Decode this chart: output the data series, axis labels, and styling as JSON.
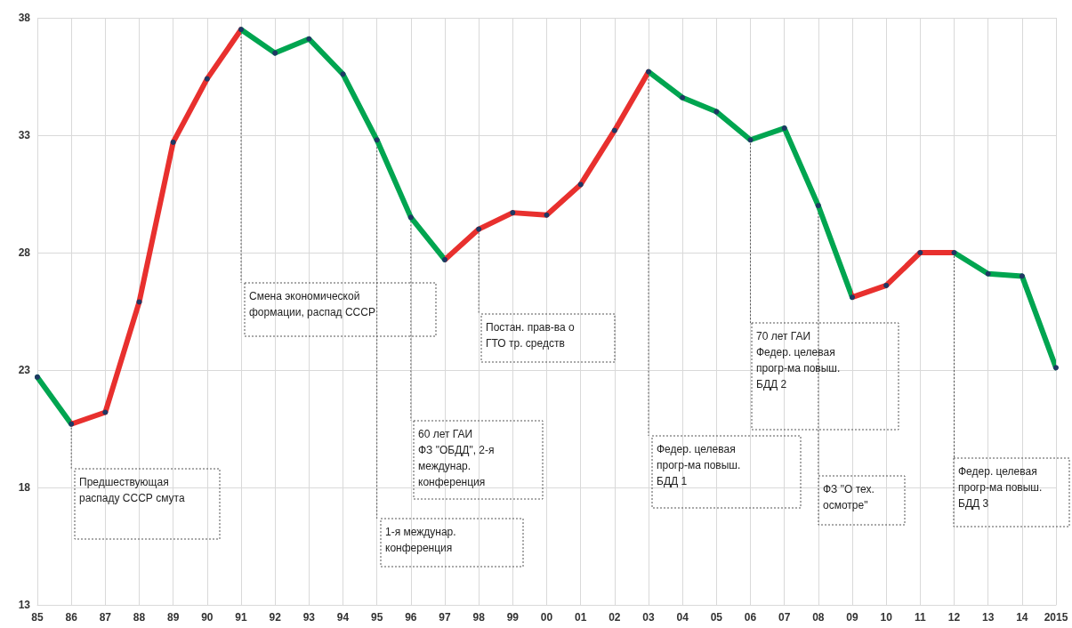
{
  "chart_data": {
    "type": "line",
    "categories": [
      "85",
      "86",
      "87",
      "88",
      "89",
      "90",
      "91",
      "92",
      "93",
      "94",
      "95",
      "96",
      "97",
      "98",
      "99",
      "00",
      "01",
      "02",
      "03",
      "04",
      "05",
      "06",
      "07",
      "08",
      "09",
      "10",
      "11",
      "12",
      "13",
      "14",
      "2015"
    ],
    "series": [
      {
        "color": "#1f3864",
        "values": [
          22.7,
          20.7,
          21.2,
          25.9,
          32.7,
          35.4,
          37.5,
          36.5,
          37.1,
          35.6,
          32.8,
          29.5,
          27.7,
          29.0,
          29.7,
          29.6,
          30.9,
          33.2,
          35.7,
          34.6,
          34.0,
          32.8,
          33.3,
          30.0,
          26.1,
          26.6,
          28.0,
          28.0,
          27.1,
          27.0,
          23.1
        ],
        "colors": [
          "#00a550",
          "#00a550",
          "#e8302e",
          "#e8302e",
          "#e8302e",
          "#e8302e",
          "#e8302e",
          "#00a550",
          "#00a550",
          "#00a550",
          "#00a550",
          "#00a550",
          "#00a550",
          "#e8302e",
          "#e8302e",
          "#e8302e",
          "#e8302e",
          "#e8302e",
          "#e8302e",
          "#00a550",
          "#00a550",
          "#00a550",
          "#00a550",
          "#00a550",
          "#00a550",
          "#e8302e",
          "#e8302e",
          "#e8302e",
          "#00a550",
          "#00a550",
          "#00a550"
        ]
      }
    ],
    "ylim": [
      13,
      38
    ],
    "yticks": [
      13,
      18,
      23,
      28,
      33,
      38
    ],
    "grid": true,
    "marker": "circle",
    "line_style": "solid",
    "annotations": [
      {
        "text": "Предшествующая\nраспаду СССР смута",
        "x": "86",
        "y": 20.7
      },
      {
        "text": "Смена экономической\nформации, распад СССР",
        "x": "91",
        "y": 37.5
      },
      {
        "text": "1-я междунар.\nконференция",
        "x": "95",
        "y": 32.8
      },
      {
        "text": "60 лет ГАИ\nФЗ \"ОБДД\", 2-я\nмеждунар.\nконференция",
        "x": "96",
        "y": 29.5
      },
      {
        "text": "Постан. прав-ва о\nГТО тр. средств",
        "x": "98",
        "y": 29.0
      },
      {
        "text": "Федер. целевая\nпрогр-ма повыш.\nБДД 1",
        "x": "03",
        "y": 35.7
      },
      {
        "text": "70 лет ГАИ\nФедер. целевая\nпрогр-ма повыш.\nБДД 2",
        "x": "06",
        "y": 32.8
      },
      {
        "text": "ФЗ \"О тех.\nосмотре\"",
        "x": "08",
        "y": 30.0
      },
      {
        "text": "Федер. целевая\nпрогр-ма повыш.\nБДД 3",
        "x": "12",
        "y": 28.0
      }
    ]
  }
}
